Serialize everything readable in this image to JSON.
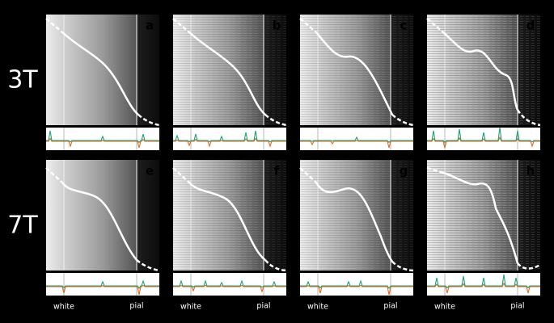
{
  "rows": [
    {
      "label": "3T",
      "panels": [
        "a",
        "b",
        "c",
        "d"
      ]
    },
    {
      "label": "7T",
      "panels": [
        "e",
        "f",
        "g",
        "h"
      ]
    }
  ],
  "columns": [
    {
      "white": "white",
      "pial": "pial"
    },
    {
      "white": "white",
      "pial": "pial"
    },
    {
      "white": "white",
      "pial": "pial"
    },
    {
      "white": "white",
      "pial": "pial"
    }
  ]
}
